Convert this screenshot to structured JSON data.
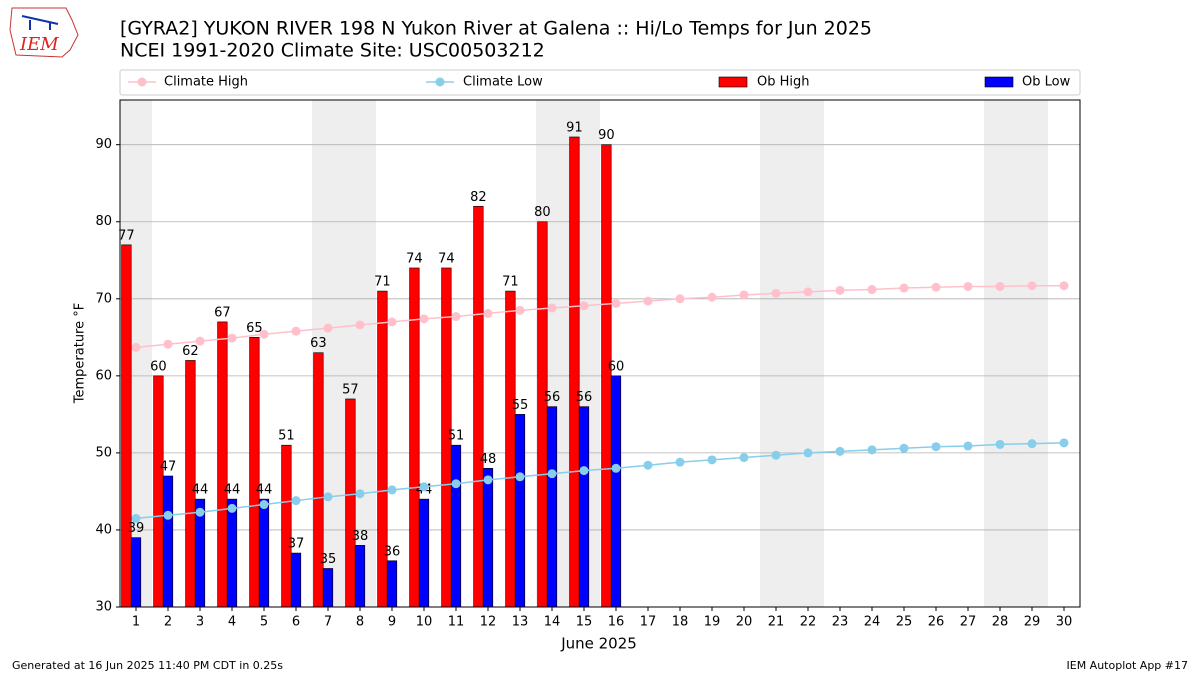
{
  "logo_text": "IEM",
  "chart_data": {
    "type": "bar",
    "title": "[GYRA2] YUKON RIVER 198 N Yukon River at Galena :: Hi/Lo Temps for Jun 2025",
    "subtitle": "NCEI 1991-2020 Climate Site: USC00503212",
    "x_label": "June 2025",
    "y_label": "Temperature °F",
    "x": [
      1,
      2,
      3,
      4,
      5,
      6,
      7,
      8,
      9,
      10,
      11,
      12,
      13,
      14,
      15,
      16,
      17,
      18,
      19,
      20,
      21,
      22,
      23,
      24,
      25,
      26,
      27,
      28,
      29,
      30
    ],
    "xlim": [
      0.5,
      30.5
    ],
    "xticks": [
      1,
      2,
      3,
      4,
      5,
      6,
      7,
      8,
      9,
      10,
      11,
      12,
      13,
      14,
      15,
      16,
      17,
      18,
      19,
      20,
      21,
      22,
      23,
      24,
      25,
      26,
      27,
      28,
      29,
      30
    ],
    "ylim": [
      30,
      95.8
    ],
    "yticks": [
      30,
      40,
      50,
      60,
      70,
      80,
      90
    ],
    "grid": true,
    "shaded_days": [
      1,
      7,
      8,
      14,
      15,
      21,
      22,
      28,
      29
    ],
    "shade_color": "#eeeeee",
    "series": [
      {
        "name": "Climate High",
        "type": "line",
        "color": "#ffc0cb",
        "values": [
          63.7,
          64.1,
          64.5,
          64.9,
          65.4,
          65.8,
          66.2,
          66.6,
          67.0,
          67.4,
          67.7,
          68.1,
          68.5,
          68.8,
          69.1,
          69.4,
          69.7,
          70.0,
          70.2,
          70.5,
          70.7,
          70.9,
          71.1,
          71.2,
          71.4,
          71.5,
          71.6,
          71.6,
          71.7,
          71.7
        ]
      },
      {
        "name": "Climate Low",
        "type": "line",
        "color": "#87ceeb",
        "values": [
          41.5,
          41.9,
          42.3,
          42.8,
          43.3,
          43.8,
          44.3,
          44.7,
          45.2,
          45.6,
          46.0,
          46.5,
          46.9,
          47.3,
          47.7,
          48.0,
          48.4,
          48.8,
          49.1,
          49.4,
          49.7,
          50.0,
          50.2,
          50.4,
          50.6,
          50.8,
          50.9,
          51.1,
          51.2,
          51.3
        ]
      },
      {
        "name": "Ob High",
        "type": "bar",
        "color": "#ff0000",
        "values": [
          77,
          60,
          62,
          67,
          65,
          51,
          63,
          57,
          71,
          74,
          74,
          82,
          71,
          80,
          91,
          90,
          null,
          null,
          null,
          null,
          null,
          null,
          null,
          null,
          null,
          null,
          null,
          null,
          null,
          null
        ]
      },
      {
        "name": "Ob Low",
        "type": "bar",
        "color": "#0000ff",
        "values": [
          39,
          47,
          44,
          44,
          44,
          37,
          35,
          38,
          36,
          44,
          51,
          48,
          55,
          56,
          56,
          60,
          null,
          null,
          null,
          null,
          null,
          null,
          null,
          null,
          null,
          null,
          null,
          null,
          null,
          null
        ]
      }
    ],
    "footer_left": "Generated at 16 Jun 2025 11:40 PM CDT in 0.25s",
    "footer_right": "IEM Autoplot App #17"
  }
}
